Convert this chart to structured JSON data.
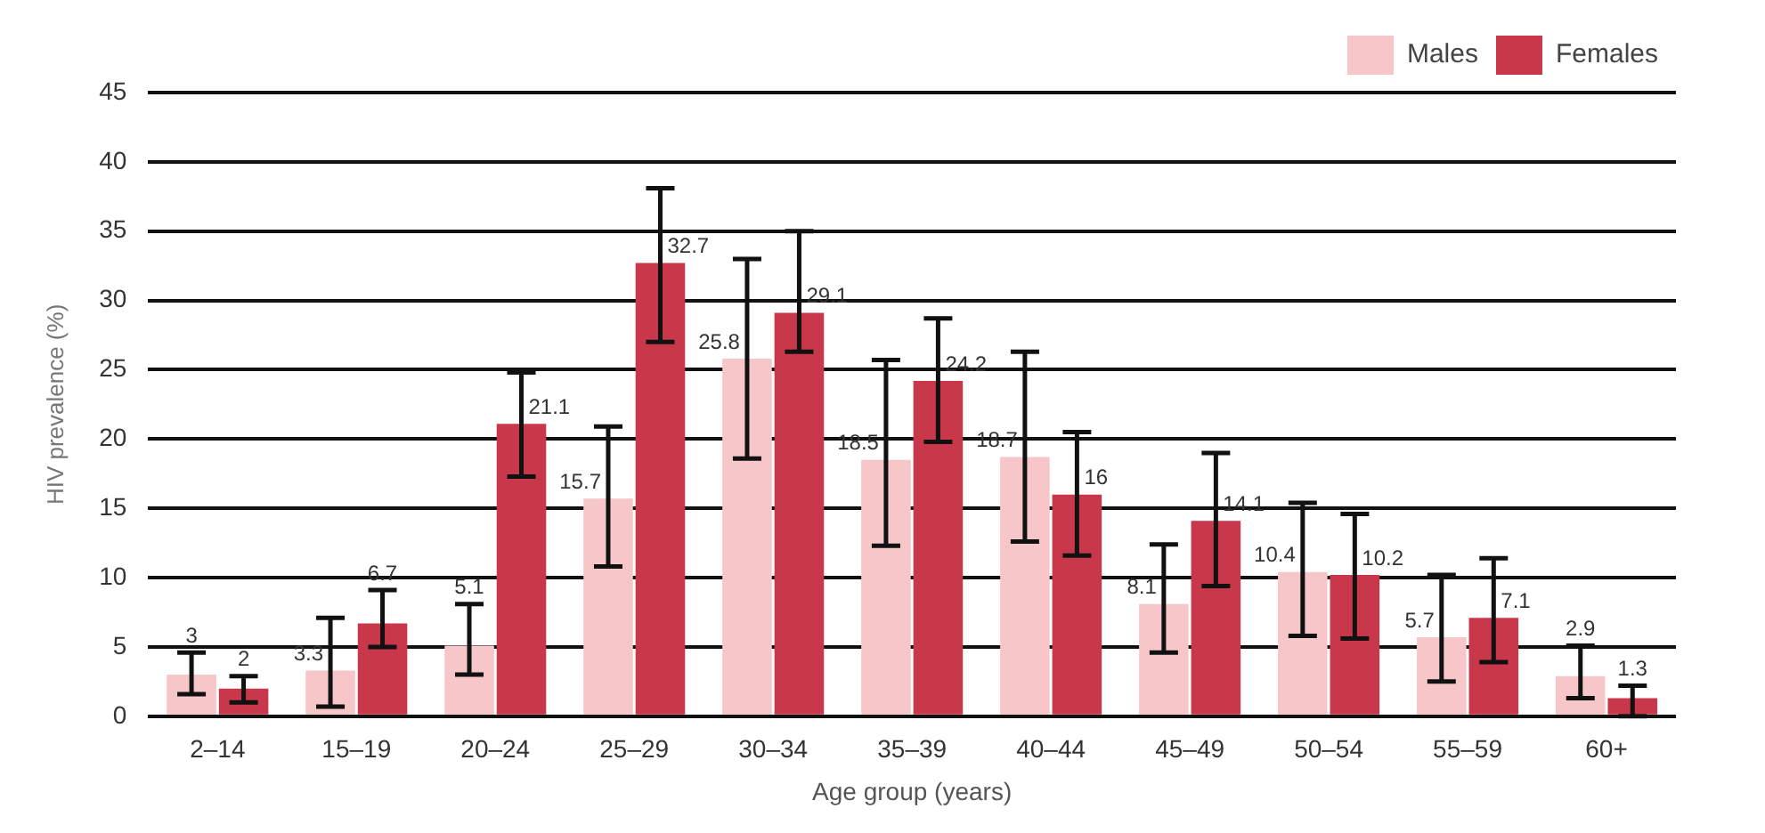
{
  "chart_data": {
    "type": "bar",
    "xlabel": "Age group (years)",
    "ylabel": "HIV prevalence (%)",
    "categories": [
      "2–14",
      "15–19",
      "20–24",
      "25–29",
      "30–34",
      "35–39",
      "40–44",
      "45–49",
      "50–54",
      "55–59",
      "60+"
    ],
    "series": [
      {
        "name": "Males",
        "color": "#f7c6c9",
        "values": [
          3.0,
          3.3,
          5.1,
          15.7,
          25.8,
          18.5,
          18.7,
          8.1,
          10.4,
          5.7,
          2.9
        ],
        "errors": [
          [
            1.6,
            4.6
          ],
          [
            0.7,
            7.1
          ],
          [
            3.0,
            8.1
          ],
          [
            10.8,
            20.9
          ],
          [
            18.6,
            33.0
          ],
          [
            12.3,
            25.7
          ],
          [
            12.6,
            26.3
          ],
          [
            4.6,
            12.4
          ],
          [
            5.8,
            15.4
          ],
          [
            2.5,
            10.2
          ],
          [
            1.3,
            5.1
          ]
        ]
      },
      {
        "name": "Females",
        "color": "#c8374a",
        "values": [
          2.0,
          6.7,
          21.1,
          32.7,
          29.1,
          24.2,
          16.0,
          14.1,
          10.2,
          7.1,
          1.3
        ],
        "errors": [
          [
            1.0,
            2.9
          ],
          [
            5.0,
            9.1
          ],
          [
            17.3,
            24.8
          ],
          [
            27.0,
            38.1
          ],
          [
            26.3,
            35.0
          ],
          [
            19.8,
            28.7
          ],
          [
            11.6,
            20.5
          ],
          [
            9.4,
            19.0
          ],
          [
            5.6,
            14.6
          ],
          [
            3.9,
            11.4
          ],
          [
            0,
            2.2
          ]
        ]
      }
    ],
    "ylim": [
      0,
      45
    ],
    "yticks": [
      0,
      5,
      10,
      15,
      20,
      25,
      30,
      35,
      40,
      45
    ],
    "grid": "y",
    "legend": "top right",
    "data_labels": true
  }
}
